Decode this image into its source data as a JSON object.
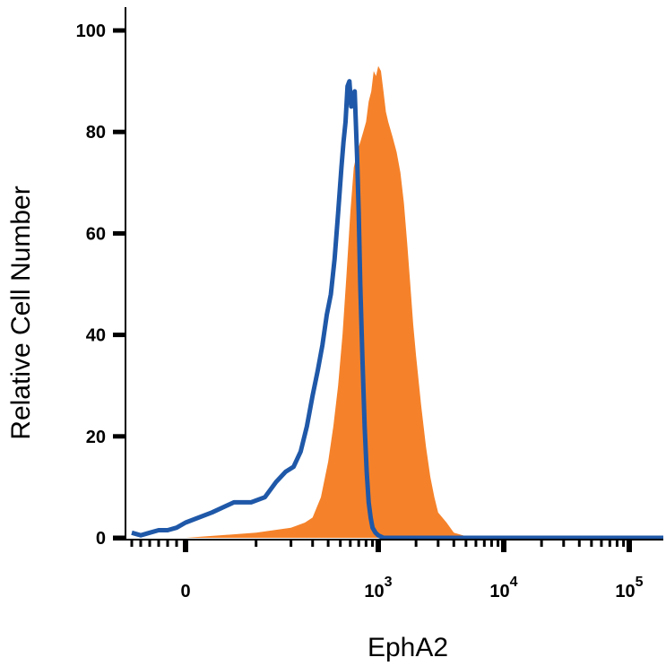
{
  "chart_data": {
    "type": "area",
    "title": "",
    "xlabel": "EphA2",
    "ylabel": "Relative Cell Number",
    "x_scale": "biexponential",
    "xlim": [
      -300,
      300000
    ],
    "ylim": [
      0,
      100
    ],
    "y_ticks": [
      "0",
      "20",
      "40",
      "60",
      "80",
      "100"
    ],
    "x_ticks": [
      {
        "base": "0",
        "exp": ""
      },
      {
        "base": "10",
        "exp": "3"
      },
      {
        "base": "10",
        "exp": "4"
      },
      {
        "base": "10",
        "exp": "5"
      }
    ],
    "grid": false,
    "legend": "none",
    "colors": {
      "filled": "#f5822a",
      "outline": "#1f58a8",
      "axis": "#000000"
    },
    "series": [
      {
        "style": "filled",
        "x": [
          -300,
          0,
          100,
          200,
          260,
          300,
          350,
          400,
          440,
          480,
          520,
          560,
          600,
          640,
          680,
          720,
          760,
          800,
          840,
          880,
          920,
          960,
          1000,
          1050,
          1100,
          1150,
          1200,
          1300,
          1400,
          1500,
          1600,
          1700,
          1800,
          1900,
          2000,
          2200,
          2400,
          2600,
          2800,
          3000,
          3500,
          4000,
          5000,
          6000,
          10000,
          300000
        ],
        "y": [
          0,
          0,
          1,
          2,
          3,
          4,
          8,
          15,
          22,
          30,
          40,
          52,
          64,
          73,
          76,
          78,
          80,
          82,
          86,
          88,
          92,
          91,
          93,
          92,
          88,
          84,
          82,
          79,
          76,
          72,
          66,
          58,
          50,
          42,
          36,
          26,
          18,
          12,
          8,
          5,
          3,
          1,
          0.3,
          0,
          0,
          0
        ]
      },
      {
        "style": "outline",
        "x": [
          -300,
          -250,
          -200,
          -150,
          -100,
          -50,
          0,
          30,
          60,
          90,
          120,
          150,
          180,
          210,
          240,
          270,
          300,
          330,
          360,
          390,
          420,
          450,
          480,
          510,
          530,
          550,
          570,
          590,
          610,
          630,
          650,
          680,
          700,
          720,
          750,
          780,
          810,
          840,
          870,
          900,
          950,
          1000,
          1100,
          1500,
          10000,
          300000
        ],
        "y": [
          1,
          0.5,
          1,
          1.5,
          1.5,
          2,
          3,
          5,
          7,
          7,
          8,
          11,
          13,
          14,
          17,
          22,
          28,
          33,
          38,
          44,
          48,
          55,
          64,
          73,
          78,
          82,
          89,
          90,
          85,
          87,
          88,
          75,
          64,
          50,
          35,
          22,
          13,
          7,
          4,
          2,
          1,
          0.5,
          0,
          0,
          0,
          0
        ]
      }
    ]
  }
}
